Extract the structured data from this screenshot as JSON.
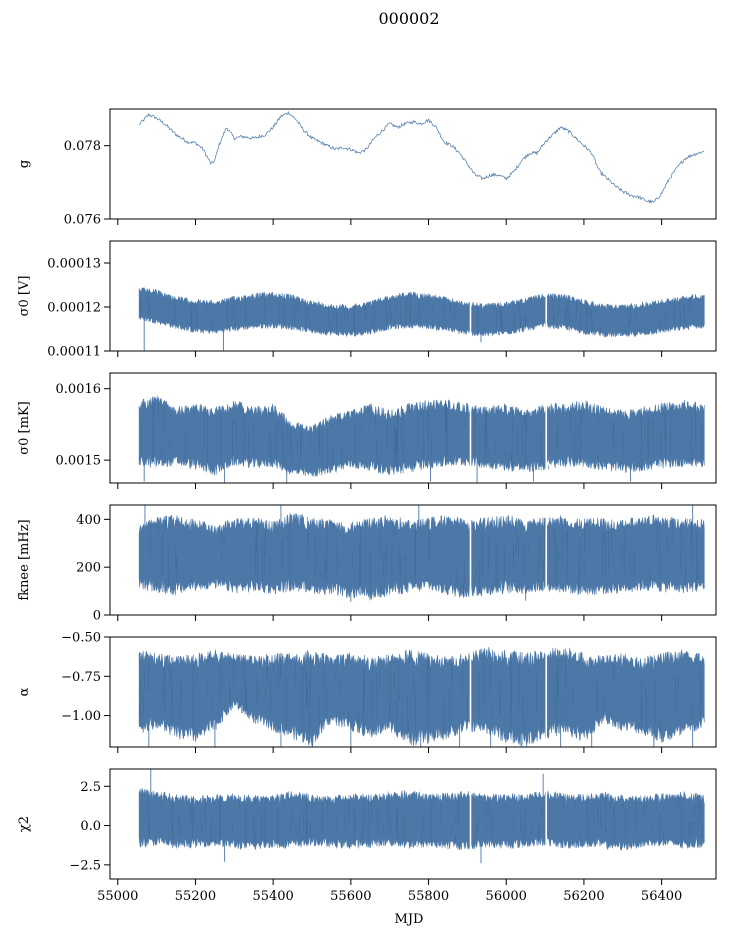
{
  "figure": {
    "title": "000002"
  },
  "chart_data": {
    "type": "line",
    "title": "000002",
    "xlabel": "MJD",
    "xlim": [
      54980,
      56540
    ],
    "x_ticks": [
      55000,
      55200,
      55400,
      55600,
      55800,
      56000,
      56200,
      56400
    ],
    "series_color": "#4c78a8",
    "grid": false,
    "panels": [
      {
        "name": "g",
        "ylabel": "g",
        "ylim": [
          0.076,
          0.079
        ],
        "y_ticks": [
          0.076,
          0.078
        ],
        "y_tick_labels": [
          "0.076",
          "0.078"
        ],
        "style": "trace",
        "x": [
          55055,
          55080,
          55100,
          55120,
          55150,
          55180,
          55200,
          55220,
          55240,
          55250,
          55260,
          55280,
          55300,
          55320,
          55350,
          55380,
          55400,
          55420,
          55440,
          55460,
          55480,
          55500,
          55520,
          55540,
          55560,
          55580,
          55600,
          55620,
          55640,
          55660,
          55680,
          55700,
          55720,
          55740,
          55760,
          55780,
          55800,
          55820,
          55840,
          55860,
          55880,
          55900,
          55920,
          55940,
          55960,
          55980,
          56000,
          56020,
          56040,
          56060,
          56080,
          56100,
          56120,
          56140,
          56160,
          56180,
          56200,
          56220,
          56240,
          56260,
          56280,
          56300,
          56320,
          56340,
          56360,
          56380,
          56400,
          56420,
          56440,
          56460,
          56480,
          56510
        ],
        "values": [
          0.07857,
          0.07885,
          0.07875,
          0.0786,
          0.0783,
          0.0781,
          0.07808,
          0.0779,
          0.0775,
          0.0776,
          0.078,
          0.0785,
          0.0782,
          0.07825,
          0.0782,
          0.0783,
          0.0785,
          0.0788,
          0.0789,
          0.0787,
          0.0784,
          0.0782,
          0.0781,
          0.078,
          0.0779,
          0.07795,
          0.0779,
          0.0778,
          0.0779,
          0.0782,
          0.0784,
          0.0786,
          0.0785,
          0.0786,
          0.07865,
          0.0786,
          0.0787,
          0.0785,
          0.0781,
          0.078,
          0.0778,
          0.0775,
          0.0772,
          0.0771,
          0.0772,
          0.0772,
          0.0771,
          0.0773,
          0.0776,
          0.0778,
          0.0778,
          0.0781,
          0.0783,
          0.0785,
          0.0784,
          0.0782,
          0.078,
          0.0778,
          0.0773,
          0.0771,
          0.0769,
          0.07675,
          0.07665,
          0.0766,
          0.0765,
          0.07645,
          0.0767,
          0.0771,
          0.0774,
          0.07765,
          0.07775,
          0.07785
        ]
      },
      {
        "name": "sigma0-V",
        "ylabel": "σ0 [V]",
        "ylim": [
          0.00011,
          0.000135
        ],
        "y_ticks": [
          0.00011,
          0.00012,
          0.00013
        ],
        "y_tick_labels": [
          "0.00011",
          "0.00012",
          "0.00013"
        ],
        "style": "band",
        "x": [
          55055,
          55100,
          55150,
          55200,
          55250,
          55300,
          55350,
          55400,
          55450,
          55500,
          55550,
          55600,
          55650,
          55700,
          55750,
          55800,
          55850,
          55900,
          55950,
          56000,
          56050,
          56100,
          56150,
          56200,
          56250,
          56300,
          56350,
          56400,
          56450,
          56510
        ],
        "upper": [
          0.0001245,
          0.000124,
          0.0001225,
          0.0001218,
          0.0001215,
          0.0001225,
          0.0001232,
          0.0001235,
          0.0001228,
          0.0001215,
          0.0001208,
          0.0001205,
          0.0001215,
          0.0001228,
          0.0001235,
          0.0001232,
          0.0001222,
          0.0001212,
          0.0001208,
          0.0001212,
          0.0001222,
          0.0001232,
          0.000123,
          0.0001218,
          0.0001208,
          0.0001206,
          0.0001212,
          0.0001218,
          0.0001225,
          0.0001232
        ],
        "lower": [
          0.000117,
          0.0001162,
          0.000115,
          0.000114,
          0.0001138,
          0.0001145,
          0.000115,
          0.0001152,
          0.0001148,
          0.000114,
          0.0001135,
          0.0001132,
          0.0001138,
          0.0001148,
          0.0001152,
          0.000115,
          0.0001143,
          0.0001135,
          0.0001132,
          0.0001136,
          0.0001144,
          0.0001152,
          0.0001148,
          0.0001138,
          0.0001132,
          0.000113,
          0.0001134,
          0.000114,
          0.0001146,
          0.0001152
        ],
        "spikes": [
          [
            55068,
            0.00011
          ],
          [
            55272,
            0.00011
          ],
          [
            55935,
            0.000112
          ]
        ]
      },
      {
        "name": "sigma0-mK",
        "ylabel": "σ0 [mK]",
        "ylim": [
          0.001468,
          0.001622
        ],
        "y_ticks": [
          0.0015,
          0.0016
        ],
        "y_tick_labels": [
          "0.0015",
          "0.0016"
        ],
        "style": "band",
        "x": [
          55055,
          55100,
          55150,
          55200,
          55250,
          55300,
          55350,
          55400,
          55450,
          55500,
          55550,
          55600,
          55650,
          55700,
          55750,
          55800,
          55850,
          55900,
          55950,
          56000,
          56050,
          56100,
          56150,
          56200,
          56250,
          56300,
          56350,
          56400,
          56450,
          56510
        ],
        "upper": [
          0.001585,
          0.001592,
          0.001575,
          0.00158,
          0.001575,
          0.001585,
          0.001575,
          0.00158,
          0.001555,
          0.001548,
          0.001565,
          0.00157,
          0.00158,
          0.00157,
          0.00158,
          0.001585,
          0.001585,
          0.00158,
          0.001575,
          0.00158,
          0.00157,
          0.00158,
          0.00158,
          0.001585,
          0.001575,
          0.00157,
          0.001575,
          0.00158,
          0.001585,
          0.00158
        ],
        "lower": [
          0.00149,
          0.001488,
          0.001492,
          0.001486,
          0.001478,
          0.001492,
          0.001488,
          0.00149,
          0.001478,
          0.001475,
          0.001482,
          0.001488,
          0.001485,
          0.001478,
          0.001482,
          0.001488,
          0.00149,
          0.001492,
          0.001488,
          0.001485,
          0.001482,
          0.001486,
          0.00149,
          0.00149,
          0.001485,
          0.001482,
          0.001484,
          0.001488,
          0.00149,
          0.00149
        ],
        "spikes": [
          [
            55068,
            0.00147
          ],
          [
            55275,
            0.001468
          ],
          [
            55435,
            0.001468
          ],
          [
            55805,
            0.00147
          ],
          [
            55925,
            0.001468
          ],
          [
            56070,
            0.00147
          ],
          [
            56320,
            0.00147
          ]
        ]
      },
      {
        "name": "fknee",
        "ylabel": "fknee [mHz]",
        "ylim": [
          0,
          460
        ],
        "y_ticks": [
          0,
          200,
          400
        ],
        "y_tick_labels": [
          "0",
          "200",
          "400"
        ],
        "style": "band",
        "x": [
          55055,
          55100,
          55150,
          55200,
          55250,
          55300,
          55350,
          55400,
          55450,
          55500,
          55550,
          55600,
          55650,
          55700,
          55750,
          55800,
          55850,
          55900,
          55950,
          56000,
          56050,
          56100,
          56150,
          56200,
          56250,
          56300,
          56350,
          56400,
          56450,
          56510
        ],
        "upper": [
          380,
          410,
          420,
          400,
          380,
          410,
          420,
          390,
          430,
          410,
          400,
          390,
          410,
          420,
          400,
          410,
          420,
          400,
          410,
          420,
          400,
          410,
          420,
          405,
          410,
          400,
          415,
          420,
          410,
          400
        ],
        "lower": [
          110,
          90,
          80,
          100,
          110,
          90,
          95,
          85,
          100,
          90,
          80,
          70,
          60,
          80,
          90,
          100,
          80,
          70,
          80,
          90,
          85,
          100,
          90,
          80,
          85,
          90,
          100,
          95,
          90,
          100
        ],
        "spikes": [
          [
            55070,
            460
          ],
          [
            55420,
            460
          ],
          [
            55600,
            55
          ],
          [
            55775,
            460
          ],
          [
            56050,
            60
          ],
          [
            56480,
            460
          ]
        ]
      },
      {
        "name": "alpha",
        "ylabel": "α",
        "ylim": [
          -1.2,
          -0.5
        ],
        "y_ticks": [
          -1.0,
          -0.75,
          -0.5
        ],
        "y_tick_labels": [
          "−1.00",
          "−0.75",
          "−0.50"
        ],
        "style": "band",
        "x": [
          55055,
          55100,
          55150,
          55200,
          55250,
          55300,
          55350,
          55400,
          55450,
          55500,
          55550,
          55600,
          55650,
          55700,
          55750,
          55800,
          55850,
          55900,
          55950,
          56000,
          56050,
          56100,
          56150,
          56200,
          56250,
          56300,
          56350,
          56400,
          56450,
          56510
        ],
        "upper": [
          -0.58,
          -0.6,
          -0.62,
          -0.6,
          -0.58,
          -0.6,
          -0.62,
          -0.6,
          -0.6,
          -0.58,
          -0.62,
          -0.6,
          -0.62,
          -0.6,
          -0.58,
          -0.6,
          -0.62,
          -0.6,
          -0.56,
          -0.58,
          -0.6,
          -0.58,
          -0.55,
          -0.6,
          -0.62,
          -0.6,
          -0.62,
          -0.6,
          -0.58,
          -0.6
        ],
        "lower": [
          -1.12,
          -1.08,
          -1.15,
          -1.18,
          -1.1,
          -0.95,
          -1.05,
          -1.1,
          -1.15,
          -1.2,
          -1.05,
          -1.1,
          -1.15,
          -1.1,
          -1.2,
          -1.18,
          -1.15,
          -1.1,
          -1.12,
          -1.18,
          -1.2,
          -1.15,
          -1.12,
          -1.18,
          -1.05,
          -1.1,
          -1.12,
          -1.18,
          -1.15,
          -1.08
        ],
        "spikes": [
          [
            55080,
            -1.2
          ],
          [
            55250,
            -1.2
          ],
          [
            55420,
            -1.2
          ],
          [
            55600,
            -1.2
          ],
          [
            55780,
            -1.2
          ],
          [
            55880,
            -1.2
          ],
          [
            55960,
            -1.2
          ],
          [
            56040,
            -1.2
          ],
          [
            56140,
            -1.2
          ],
          [
            56220,
            -1.2
          ],
          [
            56380,
            -1.2
          ],
          [
            56480,
            -1.2
          ]
        ]
      },
      {
        "name": "chi2",
        "ylabel": "χ2",
        "ylim": [
          -3.4,
          3.6
        ],
        "y_ticks": [
          -2.5,
          0.0,
          2.5
        ],
        "y_tick_labels": [
          "−2.5",
          "0.0",
          "2.5"
        ],
        "style": "band",
        "x": [
          55055,
          55100,
          55150,
          55200,
          55250,
          55300,
          55350,
          55400,
          55450,
          55500,
          55550,
          55600,
          55650,
          55700,
          55750,
          55800,
          55850,
          55900,
          55950,
          56000,
          56050,
          56100,
          56150,
          56200,
          56250,
          56300,
          56350,
          56400,
          56450,
          56510
        ],
        "upper": [
          2.4,
          2.2,
          2.0,
          1.9,
          2.0,
          2.1,
          1.9,
          2.0,
          2.2,
          2.0,
          1.9,
          2.1,
          2.0,
          2.2,
          2.3,
          2.0,
          2.1,
          2.2,
          2.0,
          2.1,
          2.0,
          2.3,
          2.1,
          2.0,
          2.2,
          2.0,
          1.9,
          2.1,
          2.2,
          2.0
        ],
        "lower": [
          -1.4,
          -1.3,
          -1.5,
          -1.4,
          -1.3,
          -1.5,
          -1.6,
          -1.4,
          -1.5,
          -1.3,
          -1.4,
          -1.5,
          -1.4,
          -1.3,
          -1.5,
          -1.4,
          -1.5,
          -1.6,
          -1.4,
          -1.5,
          -1.4,
          -1.3,
          -1.5,
          -1.4,
          -1.5,
          -1.6,
          -1.4,
          -1.3,
          -1.5,
          -1.4
        ],
        "spikes": [
          [
            55085,
            3.6
          ],
          [
            55275,
            -2.3
          ],
          [
            55935,
            -2.4
          ],
          [
            56095,
            3.3
          ]
        ]
      }
    ]
  }
}
